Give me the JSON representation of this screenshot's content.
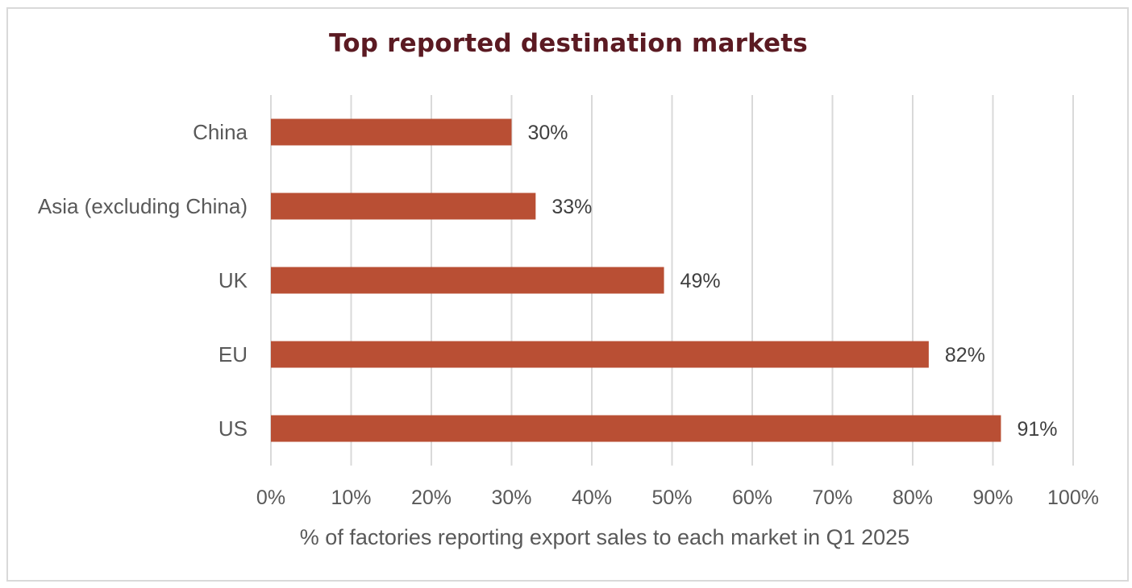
{
  "chart_data": {
    "type": "bar",
    "orientation": "horizontal",
    "title": "Top reported destination markets",
    "xlabel": "% of factories reporting export sales to each market  in Q1 2025",
    "ylabel": "",
    "categories": [
      "China",
      "Asia (excluding China)",
      "UK",
      "EU",
      "US"
    ],
    "values": [
      30,
      33,
      49,
      82,
      91
    ],
    "value_labels": [
      "30%",
      "33%",
      "49%",
      "82%",
      "91%"
    ],
    "xlim": [
      0,
      100
    ],
    "x_ticks": [
      0,
      10,
      20,
      30,
      40,
      50,
      60,
      70,
      80,
      90,
      100
    ],
    "x_tick_labels": [
      "0%",
      "10%",
      "20%",
      "30%",
      "40%",
      "50%",
      "60%",
      "70%",
      "80%",
      "90%",
      "100%"
    ],
    "grid": "vertical",
    "legend": "none",
    "colors": {
      "bar": "#b94f34",
      "title": "#5b1a22",
      "grid": "#d9d9d9",
      "text": "#595959",
      "data_label": "#404040"
    }
  }
}
